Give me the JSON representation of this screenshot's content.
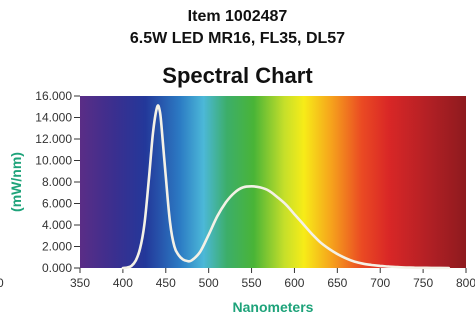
{
  "header": {
    "item": "Item 1002487",
    "product": "6.5W LED MR16, FL35, DL57"
  },
  "chart_data": {
    "type": "line",
    "title": "Spectral Chart",
    "xlabel": "Nanometers",
    "ylabel": "(mW/nm)",
    "xlim": [
      350,
      800
    ],
    "ylim": [
      0,
      16
    ],
    "x_ticks": [
      "350",
      "400",
      "450",
      "500",
      "550",
      "600",
      "650",
      "700",
      "750",
      "800"
    ],
    "y_ticks": [
      "0.000",
      "2.000",
      "4.000",
      "6.000",
      "8.000",
      "10.000",
      "12.000",
      "14.000",
      "16.000"
    ],
    "clipped_left_tick": "0",
    "background": "visible spectrum gradient",
    "line_color": "#f4f1e6",
    "series": [
      {
        "x": [
          400,
          405,
          410,
          415,
          420,
          425,
          430,
          435,
          440,
          443,
          445,
          450,
          455,
          460,
          465,
          470,
          475,
          480,
          490,
          500,
          510,
          520,
          530,
          540,
          550,
          560,
          570,
          580,
          590,
          600,
          610,
          620,
          630,
          640,
          650,
          660,
          670,
          680,
          690,
          700,
          710,
          720,
          730,
          740,
          750,
          760,
          780
        ],
        "y": [
          0,
          0.05,
          0.2,
          0.7,
          1.8,
          4.0,
          8.0,
          12.5,
          15.0,
          14.6,
          13.2,
          8.5,
          4.2,
          2.0,
          1.2,
          0.8,
          0.65,
          0.7,
          1.5,
          3.1,
          4.8,
          6.1,
          7.0,
          7.5,
          7.6,
          7.5,
          7.2,
          6.6,
          5.9,
          5.0,
          4.1,
          3.2,
          2.4,
          1.8,
          1.3,
          0.9,
          0.6,
          0.4,
          0.28,
          0.2,
          0.13,
          0.08,
          0.05,
          0.03,
          0.02,
          0.01,
          0
        ]
      }
    ]
  }
}
